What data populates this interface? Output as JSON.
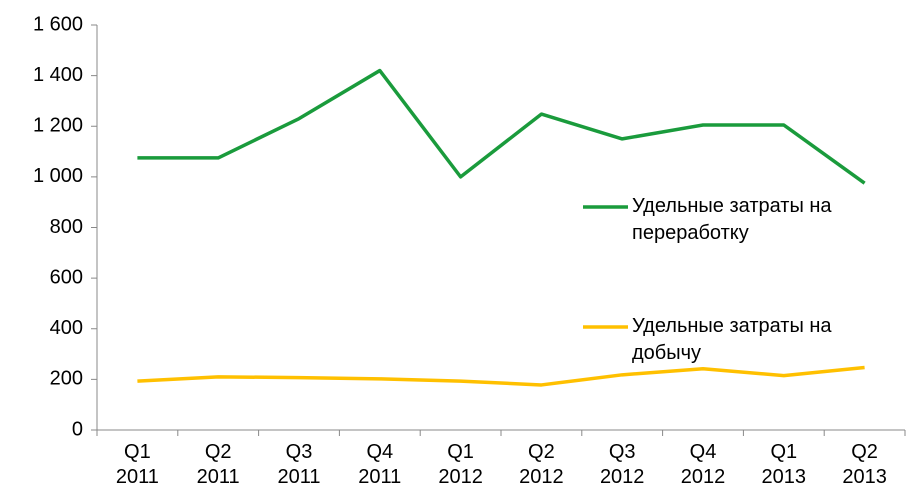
{
  "chart_data": {
    "type": "line",
    "categories": [
      "Q1 2011",
      "Q2 2011",
      "Q3 2011",
      "Q4 2011",
      "Q1 2012",
      "Q2 2012",
      "Q3 2012",
      "Q4 2012",
      "Q1 2013",
      "Q2 2013"
    ],
    "series": [
      {
        "name": "Удельные затраты на переработку",
        "color": "#1a9b3c",
        "values": [
          1075,
          1075,
          1230,
          1420,
          1000,
          1248,
          1150,
          1205,
          1205,
          975
        ]
      },
      {
        "name": "Удельные затраты на добычу",
        "color": "#ffc000",
        "values": [
          193,
          210,
          207,
          202,
          193,
          178,
          218,
          242,
          215,
          247
        ]
      }
    ],
    "ylim": [
      0,
      1600
    ],
    "yticks": [
      0,
      200,
      400,
      600,
      800,
      {
        "value": 1000,
        "label": "1 000"
      },
      {
        "value": 1200,
        "label": "1 200"
      },
      {
        "value": 1400,
        "label": "1 400"
      },
      {
        "value": 1600,
        "label": "1 600"
      }
    ],
    "grid": false
  }
}
